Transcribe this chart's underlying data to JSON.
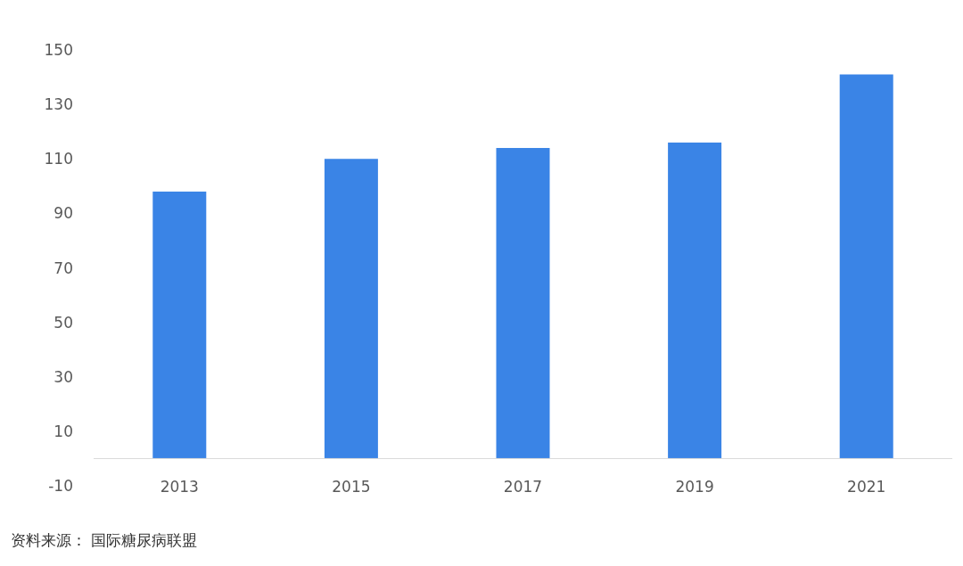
{
  "chart_data": {
    "type": "bar",
    "categories": [
      "2013",
      "2015",
      "2017",
      "2019",
      "2021"
    ],
    "values": [
      98,
      110,
      114,
      116,
      141
    ],
    "color": "#3a84e6",
    "ylim": [
      -10,
      150
    ],
    "yticks": [
      -10,
      10,
      30,
      50,
      70,
      90,
      110,
      130,
      150
    ],
    "annotations": [
      "资料来源： 国际糖尿病联盟"
    ]
  }
}
